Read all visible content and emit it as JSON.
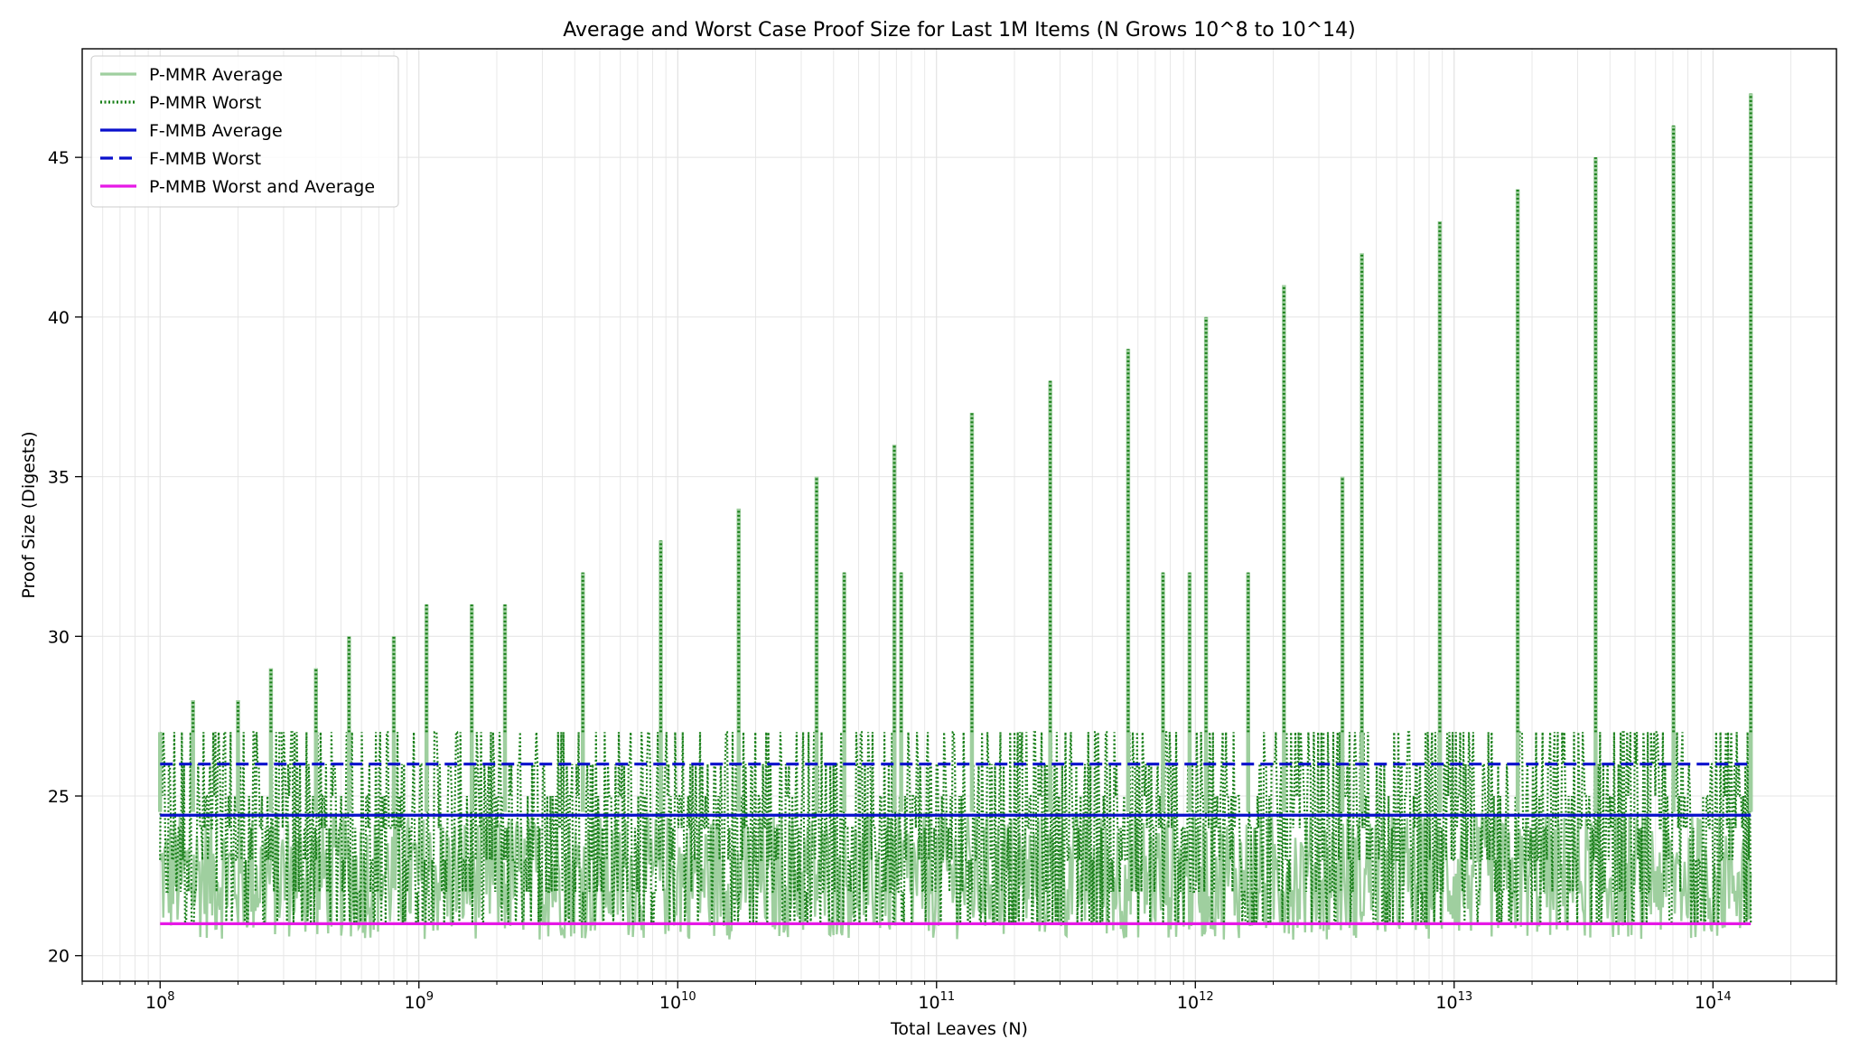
{
  "chart_data": {
    "type": "line",
    "title": "Average and Worst Case Proof Size for Last 1M Items (N Grows 10^8 to 10^14)",
    "xlabel": "Total Leaves (N)",
    "ylabel": "Proof Size (Digests)",
    "xscale": "log",
    "xlim": [
      50000000,
      300000000000000
    ],
    "ylim": [
      19.2,
      48.4
    ],
    "yticks": [
      20,
      25,
      30,
      35,
      40,
      45
    ],
    "xticks": [
      {
        "value": 100000000,
        "base": "10",
        "exp": "8"
      },
      {
        "value": 1000000000,
        "base": "10",
        "exp": "9"
      },
      {
        "value": 10000000000,
        "base": "10",
        "exp": "10"
      },
      {
        "value": 100000000000,
        "base": "10",
        "exp": "11"
      },
      {
        "value": 1000000000000,
        "base": "10",
        "exp": "12"
      },
      {
        "value": 10000000000000,
        "base": "10",
        "exp": "13"
      },
      {
        "value": 100000000000000,
        "base": "10",
        "exp": "14"
      }
    ],
    "grid": true,
    "legend_position": "top-left",
    "x_range": [
      100000000,
      140000000000000
    ],
    "series": [
      {
        "name": "P-MMR Average",
        "color": "#9fcf9f",
        "style": "solid",
        "baseline_min": 20.5,
        "baseline_max": 24.5
      },
      {
        "name": "P-MMR Worst",
        "color": "#1a801a",
        "style": "dotted",
        "baseline_min": 21.0,
        "baseline_max": 27.0
      },
      {
        "name": "F-MMB Average",
        "color": "#0a10cc",
        "style": "solid",
        "constant": 24.4
      },
      {
        "name": "F-MMB Worst",
        "color": "#0a10cc",
        "style": "dashed",
        "constant": 26.0
      },
      {
        "name": "P-MMB Worst and Average",
        "color": "#e619e6",
        "style": "solid",
        "constant": 21.0
      }
    ],
    "worst_peaks": [
      {
        "x": 100000000,
        "y": 27
      },
      {
        "x": 134000000,
        "y": 28
      },
      {
        "x": 200000000,
        "y": 28
      },
      {
        "x": 268000000,
        "y": 29
      },
      {
        "x": 400000000,
        "y": 29
      },
      {
        "x": 537000000,
        "y": 30
      },
      {
        "x": 800000000,
        "y": 30
      },
      {
        "x": 1070000000,
        "y": 31
      },
      {
        "x": 1600000000,
        "y": 31
      },
      {
        "x": 2150000000,
        "y": 31
      },
      {
        "x": 4300000000,
        "y": 32
      },
      {
        "x": 8600000000,
        "y": 33
      },
      {
        "x": 17200000000,
        "y": 34
      },
      {
        "x": 34400000000,
        "y": 35
      },
      {
        "x": 44000000000,
        "y": 32
      },
      {
        "x": 68700000000,
        "y": 36
      },
      {
        "x": 73000000000,
        "y": 32
      },
      {
        "x": 137000000000,
        "y": 37
      },
      {
        "x": 275000000000,
        "y": 38
      },
      {
        "x": 550000000000,
        "y": 39
      },
      {
        "x": 750000000000,
        "y": 32
      },
      {
        "x": 950000000000,
        "y": 32
      },
      {
        "x": 1100000000000,
        "y": 40
      },
      {
        "x": 1600000000000,
        "y": 32
      },
      {
        "x": 2200000000000,
        "y": 41
      },
      {
        "x": 3700000000000,
        "y": 35
      },
      {
        "x": 4400000000000,
        "y": 42
      },
      {
        "x": 8800000000000,
        "y": 43
      },
      {
        "x": 17600000000000,
        "y": 44
      },
      {
        "x": 35200000000000,
        "y": 45
      },
      {
        "x": 70400000000000,
        "y": 46
      },
      {
        "x": 140000000000000,
        "y": 47
      }
    ]
  }
}
